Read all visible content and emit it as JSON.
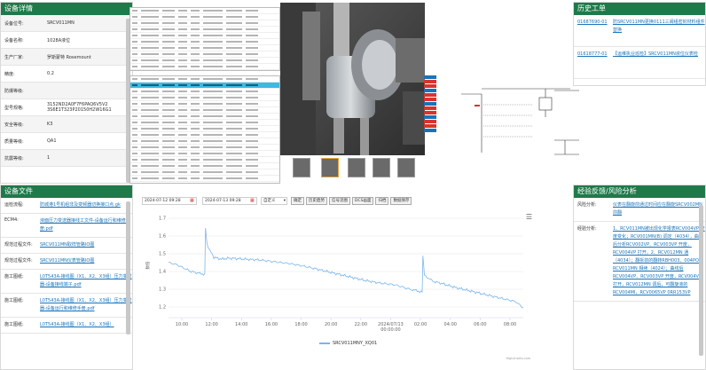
{
  "device_details": {
    "title": "设备详情",
    "rows": [
      {
        "key": "设备位号:",
        "value": "SRCV011MN"
      },
      {
        "key": "设备名称:",
        "value": "1028A液位"
      },
      {
        "key": "生产厂家:",
        "value": "罗斯蒙特 Rosemount"
      },
      {
        "key": "精度:",
        "value": "0.2"
      },
      {
        "key": "防爆等级:",
        "value": ""
      },
      {
        "key": "型号规格:",
        "value": "3152ND2A0F7F6PAQ6V5V2 3S6E1T323P20150H2W16G1"
      },
      {
        "key": "安全等级:",
        "value": "K3"
      },
      {
        "key": "质量等级:",
        "value": "QA1"
      },
      {
        "key": "抗震等级:",
        "value": "1"
      },
      {
        "key": "",
        "value": ""
      }
    ]
  },
  "device_files": {
    "title": "设备文件",
    "rows": [
      {
        "key": "运检流程:",
        "value": "防城港1号机组非及变频器切换接口点.gk"
      },
      {
        "key": "ECM4:",
        "value": "液面压力变送器接线工文件-设备运行和维修手册.pdf"
      },
      {
        "key": "规范过程文件:",
        "value": "SRCV011MN取样管路IO图"
      },
      {
        "key": "规范过程文件:",
        "value": "SRCV011MN仪表管路IO图"
      },
      {
        "key": "施工图纸:",
        "value": "L0T543A-接线图（X1、X2、X3组）压力变送器-设备接线端子.pdf"
      },
      {
        "key": "施工图纸:",
        "value": "L0T543A-接线图（X1、X2、X3组）压力变送器-设备运行和维修手册.pdf"
      },
      {
        "key": "施工图纸:",
        "value": "L0T543A-接线图（X1、X2、X3组）"
      }
    ]
  },
  "history": {
    "title": "历史工单",
    "rows": [
      {
        "id": "01687690-01",
        "desc": "防SRCV011MN更换0111三阀组密封材料组件替换"
      },
      {
        "id": "01618777-01",
        "desc": "【运维执业巡检】SRCV011MN液位仪表检"
      }
    ]
  },
  "experience": {
    "title": "经验反馈/风险分析",
    "rows": [
      {
        "key": "风险分析:",
        "value": "仪表在翻旋前通过时间应在翻旋SRCV002MN前翻"
      },
      {
        "key": "经验分析:",
        "value": "1、RCV011MN被出现化学报表RCV004VP 开度变化；RCV001MN(B) 调定（4034），曲线后分析RCV002VP、RCV003VP 开度，RCV004VP 打开，2、RCV012MN 通（4034）；翻拆前的翻转RBH003、004PO；RCV011MN 相续（4024）；曲线后RCV004VP、RCV003VP 开度，RCV004VP 打开，RCV012MN 调后，可翻旋液的RCV004MI，RCV0065VP 0RR153VP"
      }
    ]
  },
  "trend": {
    "date_start": "2024-07-12 09:28",
    "date_end": "2024-07-13 09:28",
    "range_select": "自定义",
    "buttons": [
      "确定",
      "历史趋势",
      "信号流图",
      "DCS画面",
      "归档",
      "数据保存"
    ],
    "legend": "SRCV011MNY_XQ01",
    "credit": "Highcharts.com",
    "menu_icon": "hamburger-menu-icon"
  },
  "chart_data": {
    "type": "line",
    "title": "",
    "ylabel": "数值",
    "xlabel": "",
    "ylim": [
      1.15,
      1.72
    ],
    "yticks": [
      1.2,
      1.3,
      1.4,
      1.5,
      1.6,
      1.7
    ],
    "xticks": [
      "10:00",
      "12:00",
      "14:00",
      "16:00",
      "18:00",
      "20:00",
      "22:00",
      "2024/07/13 00:00:00",
      "02:00",
      "04:00",
      "06:00",
      "08:00"
    ],
    "series": [
      {
        "name": "SRCV011MNY_XQ01",
        "color": "#7cb5ec",
        "points": [
          [
            0,
            1.45
          ],
          [
            0.5,
            1.44
          ],
          [
            1,
            1.42
          ],
          [
            1.5,
            1.4
          ],
          [
            2,
            1.39
          ],
          [
            2.4,
            1.385
          ],
          [
            2.45,
            1.65
          ],
          [
            2.55,
            1.55
          ],
          [
            3,
            1.48
          ],
          [
            3.5,
            1.47
          ],
          [
            4,
            1.475
          ],
          [
            5,
            1.47
          ],
          [
            6,
            1.465
          ],
          [
            7,
            1.455
          ],
          [
            8,
            1.445
          ],
          [
            9,
            1.43
          ],
          [
            10,
            1.41
          ],
          [
            11,
            1.39
          ],
          [
            12,
            1.37
          ],
          [
            13,
            1.35
          ],
          [
            14,
            1.335
          ],
          [
            15,
            1.325
          ],
          [
            16,
            1.3
          ],
          [
            16.8,
            1.285
          ],
          [
            16.85,
            1.49
          ],
          [
            16.95,
            1.38
          ],
          [
            17.5,
            1.345
          ],
          [
            18,
            1.335
          ],
          [
            19,
            1.31
          ],
          [
            20,
            1.29
          ],
          [
            21,
            1.27
          ],
          [
            22,
            1.25
          ],
          [
            23,
            1.23
          ],
          [
            23.5,
            1.195
          ]
        ]
      }
    ]
  }
}
